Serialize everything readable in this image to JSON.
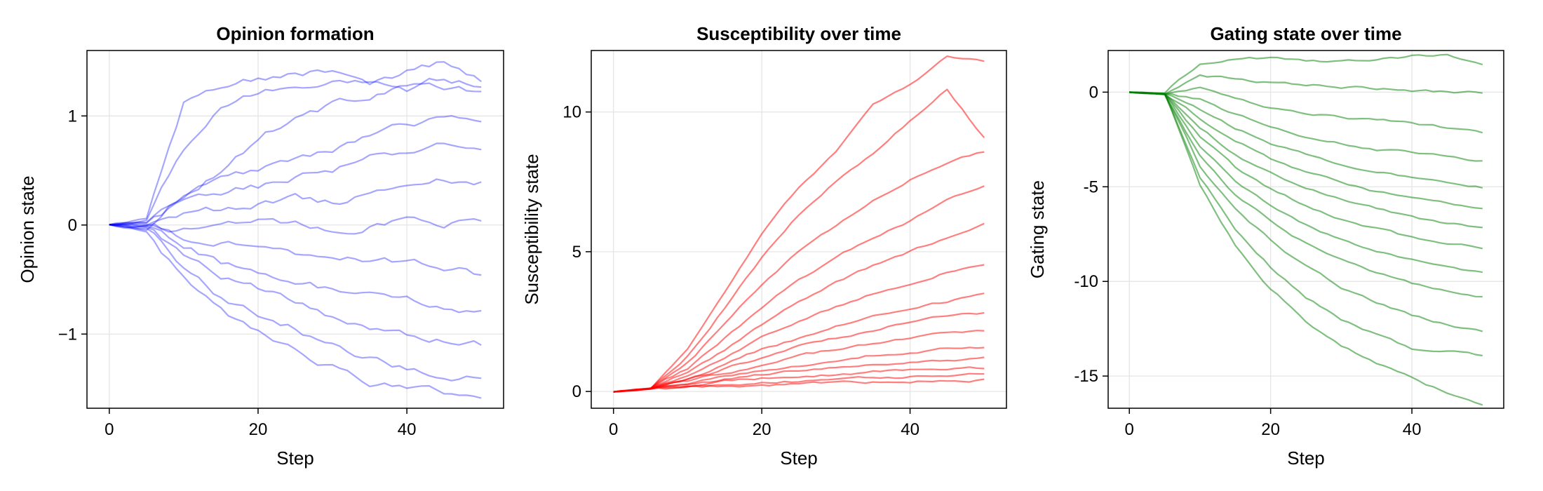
{
  "chart_data": [
    {
      "type": "line",
      "title": "Opinion formation",
      "xlabel": "Step",
      "ylabel": "Opinion state",
      "xlim": [
        -3,
        53
      ],
      "ylim": [
        -1.68,
        1.6
      ],
      "xticks": [
        0,
        20,
        40
      ],
      "xtick_labels": [
        "0",
        "20",
        "40"
      ],
      "yticks": [
        -1,
        0,
        1
      ],
      "ytick_labels": [
        "−1",
        "0",
        "1"
      ],
      "grid": true,
      "legend": "none",
      "color": "#0000ff",
      "opacity": 0.35,
      "series_count": 100,
      "steps": 51,
      "series": [
        {
          "x": [
            0,
            5,
            10,
            15,
            20,
            25,
            30,
            35,
            40,
            45,
            50
          ],
          "values": [
            0,
            0.05,
            1.1,
            1.3,
            1.35,
            1.4,
            1.4,
            1.3,
            1.4,
            1.5,
            1.35
          ]
        },
        {
          "x": [
            0,
            5,
            10,
            15,
            20,
            25,
            30,
            35,
            40,
            45,
            50
          ],
          "values": [
            0,
            0.04,
            0.7,
            1.1,
            1.2,
            1.25,
            1.3,
            1.3,
            1.25,
            1.35,
            1.3
          ]
        },
        {
          "x": [
            0,
            5,
            10,
            15,
            20,
            25,
            30,
            35,
            40,
            45,
            50
          ],
          "values": [
            0,
            -0.03,
            0.3,
            0.5,
            0.8,
            1.0,
            1.1,
            1.2,
            1.3,
            1.25,
            1.2
          ]
        },
        {
          "x": [
            0,
            5,
            10,
            15,
            20,
            25,
            30,
            35,
            40,
            45,
            50
          ],
          "values": [
            0,
            0.02,
            0.25,
            0.4,
            0.5,
            0.6,
            0.7,
            0.8,
            0.9,
            1.0,
            1.0
          ]
        },
        {
          "x": [
            0,
            5,
            10,
            15,
            20,
            25,
            30,
            35,
            40,
            45,
            50
          ],
          "values": [
            0,
            0.01,
            0.2,
            0.3,
            0.35,
            0.45,
            0.5,
            0.6,
            0.65,
            0.75,
            0.7
          ]
        },
        {
          "x": [
            0,
            5,
            10,
            15,
            20,
            25,
            30,
            35,
            40,
            45,
            50
          ],
          "values": [
            0,
            0.0,
            0.1,
            0.15,
            0.2,
            0.25,
            0.2,
            0.3,
            0.35,
            0.4,
            0.4
          ]
        },
        {
          "x": [
            0,
            5,
            10,
            15,
            20,
            25,
            30,
            35,
            40,
            45,
            50
          ],
          "values": [
            0,
            -0.02,
            -0.05,
            0.0,
            0.05,
            0.0,
            -0.05,
            0.0,
            0.05,
            0.0,
            0.05
          ]
        },
        {
          "x": [
            0,
            5,
            10,
            15,
            20,
            25,
            30,
            35,
            40,
            45,
            50
          ],
          "values": [
            0,
            0.01,
            -0.1,
            -0.15,
            -0.2,
            -0.25,
            -0.3,
            -0.3,
            -0.35,
            -0.4,
            -0.45
          ]
        },
        {
          "x": [
            0,
            5,
            10,
            15,
            20,
            25,
            30,
            35,
            40,
            45,
            50
          ],
          "values": [
            0,
            -0.01,
            -0.2,
            -0.35,
            -0.45,
            -0.5,
            -0.6,
            -0.65,
            -0.7,
            -0.75,
            -0.8
          ]
        },
        {
          "x": [
            0,
            5,
            10,
            15,
            20,
            25,
            30,
            35,
            40,
            45,
            50
          ],
          "values": [
            0,
            -0.03,
            -0.3,
            -0.5,
            -0.6,
            -0.7,
            -0.85,
            -0.95,
            -1.0,
            -1.05,
            -1.1
          ]
        },
        {
          "x": [
            0,
            5,
            10,
            15,
            20,
            25,
            30,
            35,
            40,
            45,
            50
          ],
          "values": [
            0,
            -0.04,
            -0.4,
            -0.65,
            -0.8,
            -0.95,
            -1.1,
            -1.2,
            -1.3,
            -1.35,
            -1.4
          ]
        },
        {
          "x": [
            0,
            5,
            10,
            15,
            20,
            25,
            30,
            35,
            40,
            45,
            50
          ],
          "values": [
            0,
            -0.05,
            -0.5,
            -0.8,
            -1.0,
            -1.15,
            -1.3,
            -1.45,
            -1.5,
            -1.55,
            -1.65
          ]
        }
      ]
    },
    {
      "type": "line",
      "title": "Susceptibility over time",
      "xlabel": "Step",
      "ylabel": "Susceptibility state",
      "xlim": [
        -3,
        53
      ],
      "ylim": [
        -0.6,
        12.2
      ],
      "xticks": [
        0,
        20,
        40
      ],
      "xtick_labels": [
        "0",
        "20",
        "40"
      ],
      "yticks": [
        0,
        5,
        10
      ],
      "ytick_labels": [
        "0",
        "5",
        "10"
      ],
      "grid": true,
      "legend": "none",
      "color": "#ff0000",
      "opacity": 0.5,
      "series_count": 100,
      "steps": 51,
      "series": [
        {
          "x": [
            0,
            5,
            10,
            15,
            20,
            25,
            30,
            35,
            40,
            45,
            50
          ],
          "values": [
            0,
            0.1,
            1.5,
            3.6,
            5.6,
            7.3,
            8.6,
            10.2,
            11.0,
            12.0,
            11.8
          ]
        },
        {
          "x": [
            0,
            5,
            10,
            15,
            20,
            25,
            30,
            35,
            40,
            45,
            50
          ],
          "values": [
            0,
            0.1,
            1.3,
            3.0,
            4.8,
            6.3,
            7.5,
            8.5,
            9.7,
            10.8,
            9.1
          ]
        },
        {
          "x": [
            0,
            5,
            10,
            15,
            20,
            25,
            30,
            35,
            40,
            45,
            50
          ],
          "values": [
            0,
            0.1,
            1.0,
            2.4,
            3.8,
            5.0,
            5.9,
            6.8,
            7.6,
            8.2,
            8.6
          ]
        },
        {
          "x": [
            0,
            5,
            10,
            15,
            20,
            25,
            30,
            35,
            40,
            45,
            50
          ],
          "values": [
            0,
            0.1,
            0.8,
            1.9,
            3.0,
            4.0,
            4.8,
            5.5,
            6.1,
            6.9,
            7.4
          ]
        },
        {
          "x": [
            0,
            5,
            10,
            15,
            20,
            25,
            30,
            35,
            40,
            45,
            50
          ],
          "values": [
            0,
            0.1,
            0.7,
            1.5,
            2.4,
            3.2,
            3.9,
            4.5,
            5.0,
            5.5,
            6.0
          ]
        },
        {
          "x": [
            0,
            5,
            10,
            15,
            20,
            25,
            30,
            35,
            40,
            45,
            50
          ],
          "values": [
            0,
            0.1,
            0.55,
            1.2,
            1.9,
            2.5,
            3.0,
            3.5,
            3.9,
            4.3,
            4.6
          ]
        },
        {
          "x": [
            0,
            5,
            10,
            15,
            20,
            25,
            30,
            35,
            40,
            45,
            50
          ],
          "values": [
            0,
            0.1,
            0.45,
            0.95,
            1.5,
            1.9,
            2.3,
            2.7,
            3.0,
            3.2,
            3.5
          ]
        },
        {
          "x": [
            0,
            5,
            10,
            15,
            20,
            25,
            30,
            35,
            40,
            45,
            50
          ],
          "values": [
            0,
            0.1,
            0.4,
            0.8,
            1.2,
            1.6,
            1.9,
            2.2,
            2.5,
            2.7,
            2.8
          ]
        },
        {
          "x": [
            0,
            5,
            10,
            15,
            20,
            25,
            30,
            35,
            40,
            45,
            50
          ],
          "values": [
            0,
            0.1,
            0.35,
            0.65,
            0.95,
            1.25,
            1.5,
            1.7,
            1.9,
            2.1,
            2.2
          ]
        },
        {
          "x": [
            0,
            5,
            10,
            15,
            20,
            25,
            30,
            35,
            40,
            45,
            50
          ],
          "values": [
            0,
            0.1,
            0.3,
            0.55,
            0.75,
            0.95,
            1.1,
            1.3,
            1.4,
            1.55,
            1.6
          ]
        },
        {
          "x": [
            0,
            5,
            10,
            15,
            20,
            25,
            30,
            35,
            40,
            45,
            50
          ],
          "values": [
            0,
            0.1,
            0.25,
            0.45,
            0.6,
            0.75,
            0.85,
            0.95,
            1.05,
            1.15,
            1.2
          ]
        },
        {
          "x": [
            0,
            5,
            10,
            15,
            20,
            25,
            30,
            35,
            40,
            45,
            50
          ],
          "values": [
            0,
            0.1,
            0.2,
            0.35,
            0.45,
            0.55,
            0.6,
            0.7,
            0.75,
            0.8,
            0.85
          ]
        },
        {
          "x": [
            0,
            5,
            10,
            15,
            20,
            25,
            30,
            35,
            40,
            45,
            50
          ],
          "values": [
            0,
            0.1,
            0.15,
            0.25,
            0.32,
            0.38,
            0.43,
            0.48,
            0.52,
            0.56,
            0.6
          ]
        },
        {
          "x": [
            0,
            5,
            10,
            15,
            20,
            25,
            30,
            35,
            40,
            45,
            50
          ],
          "values": [
            0,
            0.1,
            0.12,
            0.18,
            0.22,
            0.26,
            0.3,
            0.33,
            0.36,
            0.39,
            0.42
          ]
        }
      ]
    },
    {
      "type": "line",
      "title": "Gating state over time",
      "xlabel": "Step",
      "ylabel": "Gating state",
      "xlim": [
        -3,
        53
      ],
      "ylim": [
        -16.7,
        2.2
      ],
      "xticks": [
        0,
        20,
        40
      ],
      "xtick_labels": [
        "0",
        "20",
        "40"
      ],
      "yticks": [
        0,
        -5,
        -10,
        -15
      ],
      "ytick_labels": [
        "0",
        "-5",
        "-10",
        "-15"
      ],
      "grid": true,
      "legend": "none",
      "color": "#008000",
      "opacity": 0.5,
      "series_count": 100,
      "steps": 51,
      "series": [
        {
          "x": [
            0,
            5,
            10,
            15,
            20,
            25,
            30,
            35,
            40,
            45,
            50
          ],
          "values": [
            0,
            -0.1,
            1.5,
            1.8,
            1.8,
            1.7,
            1.6,
            1.7,
            1.9,
            2.0,
            1.4
          ]
        },
        {
          "x": [
            0,
            5,
            10,
            15,
            20,
            25,
            30,
            35,
            40,
            45,
            50
          ],
          "values": [
            0,
            -0.1,
            0.9,
            0.7,
            0.5,
            0.4,
            0.3,
            0.2,
            0.1,
            0.0,
            0.0
          ]
        },
        {
          "x": [
            0,
            5,
            10,
            15,
            20,
            25,
            30,
            35,
            40,
            45,
            50
          ],
          "values": [
            0,
            -0.1,
            0.2,
            -0.4,
            -0.8,
            -1.1,
            -1.3,
            -1.5,
            -1.6,
            -1.9,
            -2.2
          ]
        },
        {
          "x": [
            0,
            5,
            10,
            15,
            20,
            25,
            30,
            35,
            40,
            45,
            50
          ],
          "values": [
            0,
            -0.1,
            -0.4,
            -1.2,
            -1.8,
            -2.3,
            -2.7,
            -3.0,
            -3.2,
            -3.4,
            -3.6
          ]
        },
        {
          "x": [
            0,
            5,
            10,
            15,
            20,
            25,
            30,
            35,
            40,
            45,
            50
          ],
          "values": [
            0,
            -0.1,
            -0.9,
            -1.9,
            -2.7,
            -3.3,
            -3.8,
            -4.2,
            -4.5,
            -4.8,
            -5.0
          ]
        },
        {
          "x": [
            0,
            5,
            10,
            15,
            20,
            25,
            30,
            35,
            40,
            45,
            50
          ],
          "values": [
            0,
            -0.1,
            -1.4,
            -2.6,
            -3.5,
            -4.2,
            -4.8,
            -5.3,
            -5.6,
            -5.9,
            -6.1
          ]
        },
        {
          "x": [
            0,
            5,
            10,
            15,
            20,
            25,
            30,
            35,
            40,
            45,
            50
          ],
          "values": [
            0,
            -0.1,
            -1.9,
            -3.3,
            -4.3,
            -5.1,
            -5.7,
            -6.2,
            -6.6,
            -6.9,
            -7.2
          ]
        },
        {
          "x": [
            0,
            5,
            10,
            15,
            20,
            25,
            30,
            35,
            40,
            45,
            50
          ],
          "values": [
            0,
            -0.1,
            -2.4,
            -4.0,
            -5.1,
            -6.0,
            -6.7,
            -7.2,
            -7.7,
            -8.0,
            -8.2
          ]
        },
        {
          "x": [
            0,
            5,
            10,
            15,
            20,
            25,
            30,
            35,
            40,
            45,
            50
          ],
          "values": [
            0,
            -0.1,
            -2.9,
            -4.7,
            -6.0,
            -7.0,
            -7.8,
            -8.4,
            -8.9,
            -9.2,
            -9.5
          ]
        },
        {
          "x": [
            0,
            5,
            10,
            15,
            20,
            25,
            30,
            35,
            40,
            45,
            50
          ],
          "values": [
            0,
            -0.1,
            -3.4,
            -5.4,
            -6.8,
            -8.0,
            -8.9,
            -9.6,
            -10.1,
            -10.5,
            -10.8
          ]
        },
        {
          "x": [
            0,
            5,
            10,
            15,
            20,
            25,
            30,
            35,
            40,
            45,
            50
          ],
          "values": [
            0,
            -0.1,
            -3.9,
            -6.2,
            -7.8,
            -9.2,
            -10.3,
            -11.1,
            -11.8,
            -12.3,
            -12.6
          ]
        },
        {
          "x": [
            0,
            5,
            10,
            15,
            20,
            25,
            30,
            35,
            40,
            45,
            50
          ],
          "values": [
            0,
            -0.1,
            -4.5,
            -7.2,
            -9.2,
            -10.8,
            -12.0,
            -12.8,
            -13.6,
            -13.6,
            -13.9
          ]
        },
        {
          "x": [
            0,
            5,
            10,
            15,
            20,
            25,
            30,
            35,
            40,
            45,
            50
          ],
          "values": [
            0,
            -0.1,
            -5.0,
            -8.1,
            -10.4,
            -12.1,
            -13.4,
            -14.3,
            -15.1,
            -15.9,
            -16.6
          ]
        }
      ]
    }
  ]
}
